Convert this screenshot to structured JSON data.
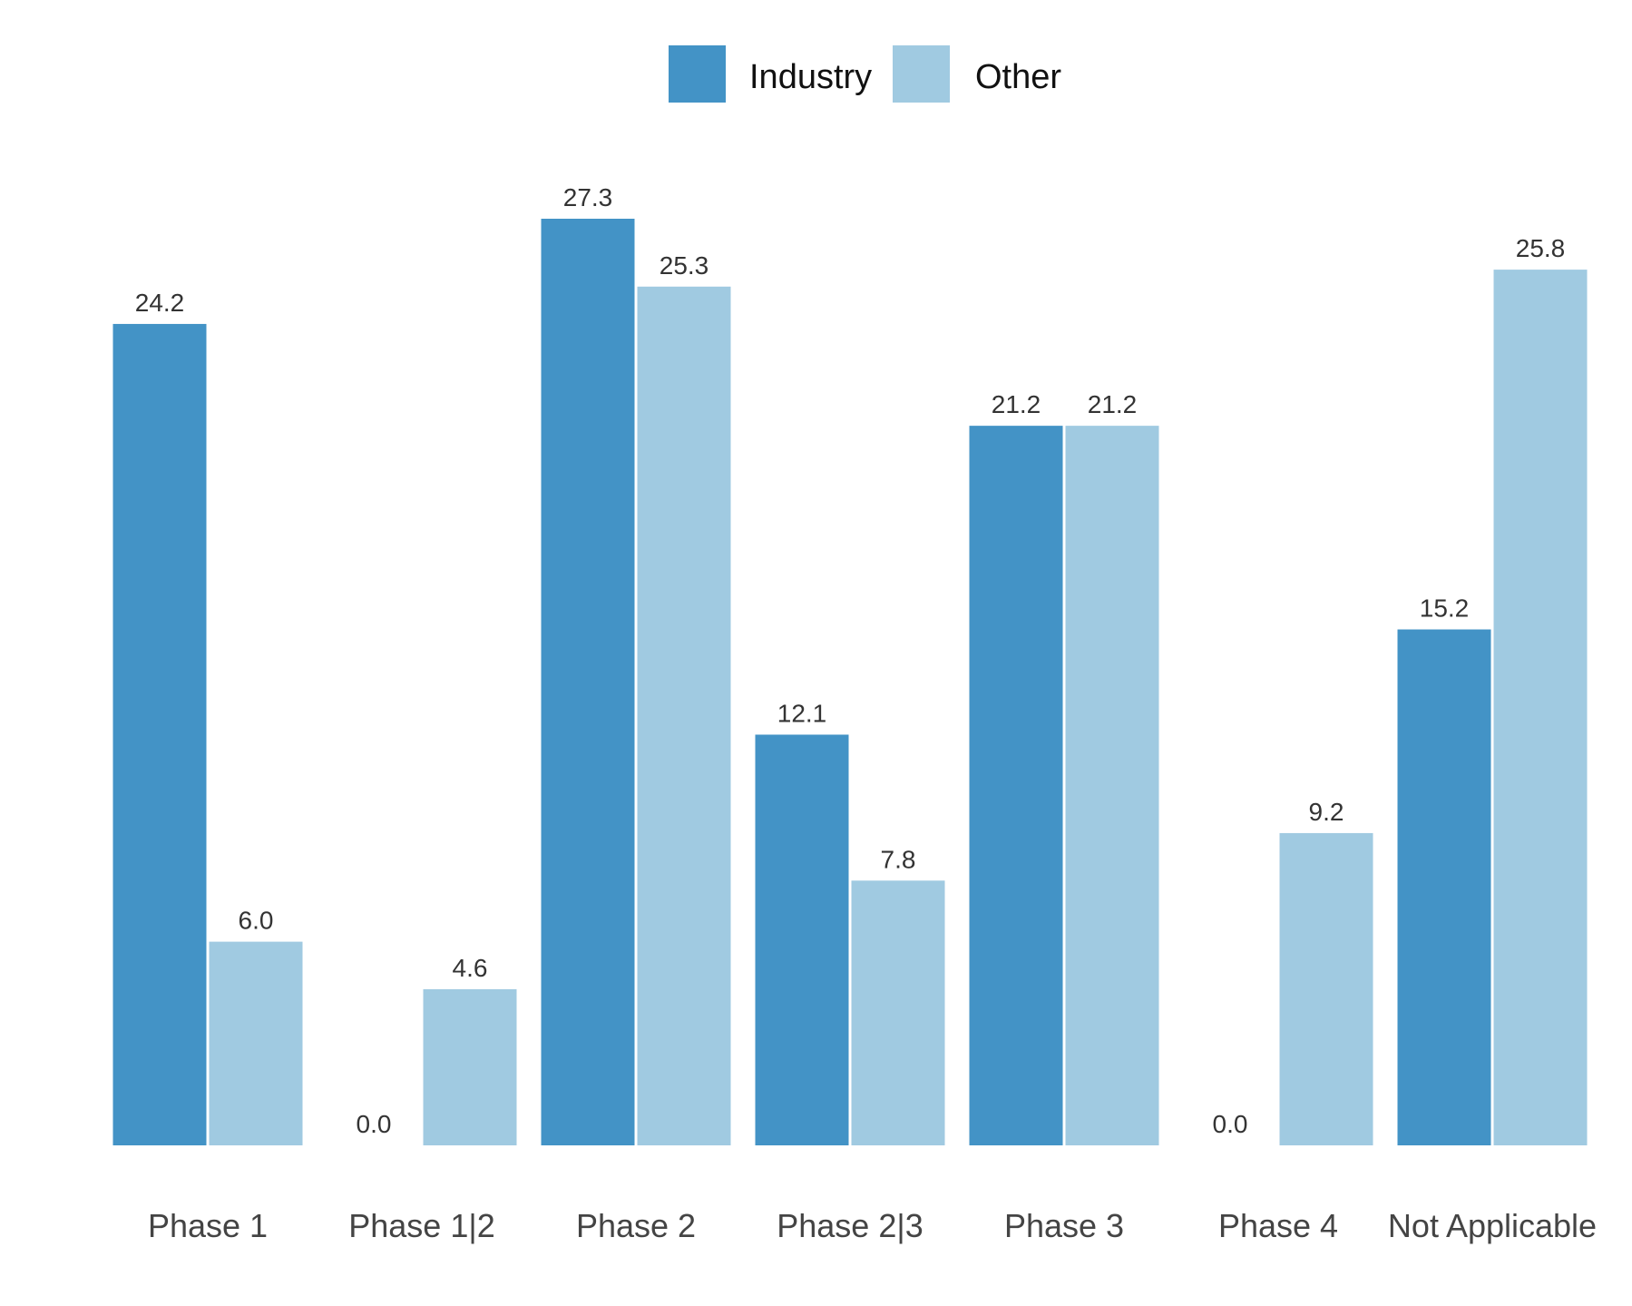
{
  "chart_data": {
    "type": "bar",
    "categories": [
      "Phase 1",
      "Phase 1|2",
      "Phase 2",
      "Phase 2|3",
      "Phase 3",
      "Phase 4",
      "Not Applicable"
    ],
    "series": [
      {
        "name": "Industry",
        "color": "#4393c6",
        "values": [
          24.2,
          0.0,
          27.3,
          12.1,
          21.2,
          0.0,
          15.2
        ],
        "labels": [
          "24.2",
          "0.0",
          "27.3",
          "12.1",
          "21.2",
          "0.0",
          "15.2"
        ]
      },
      {
        "name": "Other",
        "color": "#a0cae1",
        "values": [
          6.0,
          4.6,
          25.3,
          7.8,
          21.2,
          9.2,
          25.8
        ],
        "labels": [
          "6.0",
          "4.6",
          "25.3",
          "7.8",
          "21.2",
          "9.2",
          "25.8"
        ]
      }
    ],
    "title": "",
    "xlabel": "",
    "ylabel": "",
    "ylim": [
      0,
      27.3
    ],
    "grid": false,
    "legend_position": "top-center",
    "data_labels": true
  }
}
